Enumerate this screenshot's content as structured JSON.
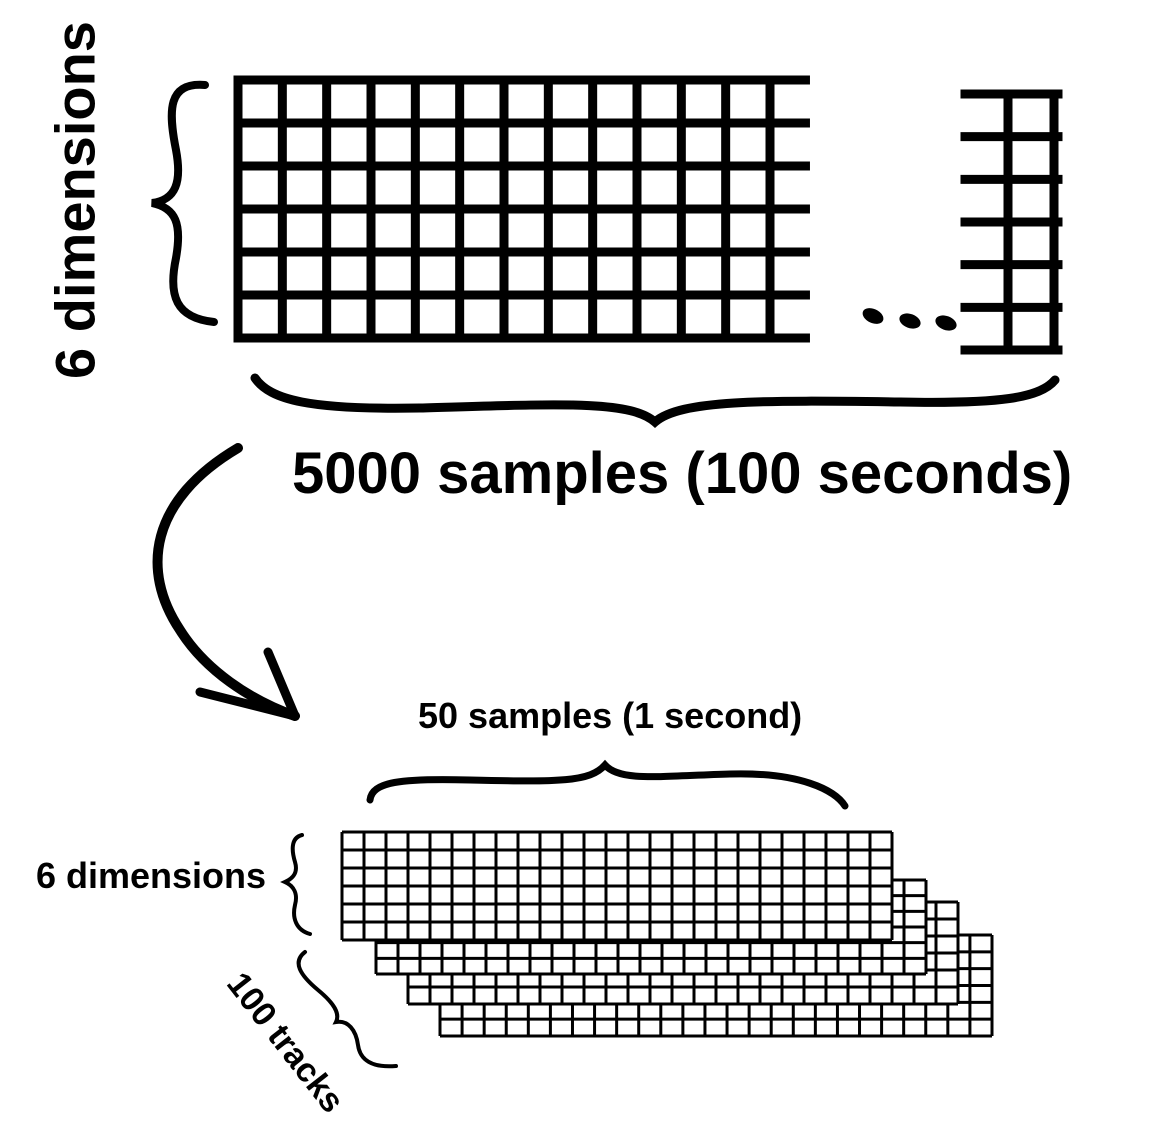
{
  "labels": {
    "top_dimensions": "6 dimensions",
    "top_samples": "5000 samples (100 seconds)",
    "bottom_samples": "50 samples (1 second)",
    "bottom_dimensions": "6 dimensions",
    "tracks": "100 tracks"
  },
  "top_grid": {
    "rows": 6,
    "main_columns": 12,
    "tail_columns": 2,
    "ellipsis": "..."
  },
  "bottom_stack": {
    "rows": 6,
    "columns": 25,
    "layers_drawn": 4
  },
  "colors": {
    "ink": "#000000",
    "background": "#ffffff"
  }
}
